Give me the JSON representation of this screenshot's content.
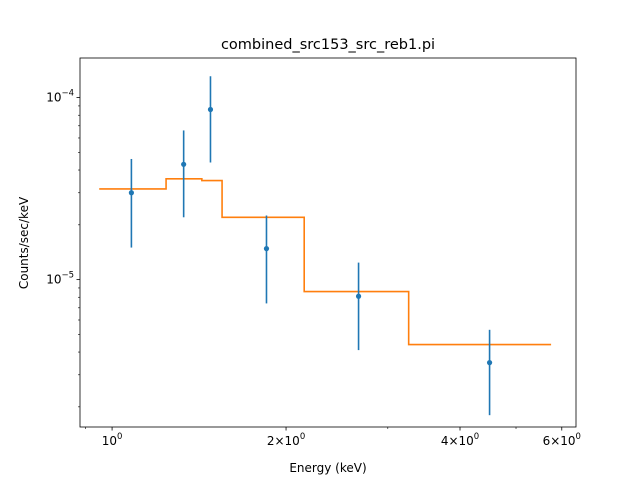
{
  "chart_data": {
    "type": "scatter",
    "title": "combined_src153_src_reb1.pi",
    "xlabel": "Energy (keV)",
    "ylabel": "Counts/sec/keV",
    "xscale": "log",
    "yscale": "log",
    "xlim": [
      0.88,
      6.35
    ],
    "ylim": [
      1.55e-06,
      0.000165
    ],
    "grid": false,
    "legend": "none",
    "x_ticks": [
      {
        "value": 1,
        "base": "10",
        "exp": "0"
      },
      {
        "value": 2,
        "base": "2×10",
        "exp": "0"
      },
      {
        "value": 4,
        "base": "4×10",
        "exp": "0"
      },
      {
        "value": 6,
        "base": "6×10",
        "exp": "0"
      }
    ],
    "x_minor_ticks": [
      0.9,
      3,
      5
    ],
    "y_ticks": [
      {
        "value": 1e-05,
        "base": "10",
        "exp": "−5"
      },
      {
        "value": 0.0001,
        "base": "10",
        "exp": "−4"
      }
    ],
    "y_minor_ticks": [
      2e-06,
      3e-06,
      4e-06,
      5e-06,
      6e-06,
      7e-06,
      8e-06,
      9e-06,
      2e-05,
      3e-05,
      4e-05,
      5e-05,
      6e-05,
      7e-05,
      8e-05,
      9e-05
    ],
    "series": [
      {
        "kind": "errorbar",
        "color": "#1f77b4",
        "points": [
          {
            "x": 1.08,
            "y": 3e-05,
            "ylow": 1.5e-05,
            "yhigh": 4.6e-05
          },
          {
            "x": 1.33,
            "y": 4.3e-05,
            "ylow": 2.2e-05,
            "yhigh": 6.6e-05
          },
          {
            "x": 1.48,
            "y": 8.6e-05,
            "ylow": 4.4e-05,
            "yhigh": 0.000131
          },
          {
            "x": 1.85,
            "y": 1.48e-05,
            "ylow": 7.4e-06,
            "yhigh": 2.25e-05
          },
          {
            "x": 2.67,
            "y": 8.1e-06,
            "ylow": 4.1e-06,
            "yhigh": 1.24e-05
          },
          {
            "x": 4.5,
            "y": 3.5e-06,
            "ylow": 1.8e-06,
            "yhigh": 5.3e-06
          }
        ]
      },
      {
        "kind": "step",
        "color": "#ff7f0e",
        "steps": [
          {
            "x0": 0.95,
            "x1": 1.24,
            "y": 3.15e-05
          },
          {
            "x0": 1.24,
            "x1": 1.43,
            "y": 3.58e-05
          },
          {
            "x0": 1.43,
            "x1": 1.55,
            "y": 3.5e-05
          },
          {
            "x0": 1.55,
            "x1": 2.15,
            "y": 2.2e-05
          },
          {
            "x0": 2.15,
            "x1": 3.26,
            "y": 8.6e-06
          },
          {
            "x0": 3.26,
            "x1": 5.75,
            "y": 4.4e-06
          }
        ]
      }
    ]
  }
}
